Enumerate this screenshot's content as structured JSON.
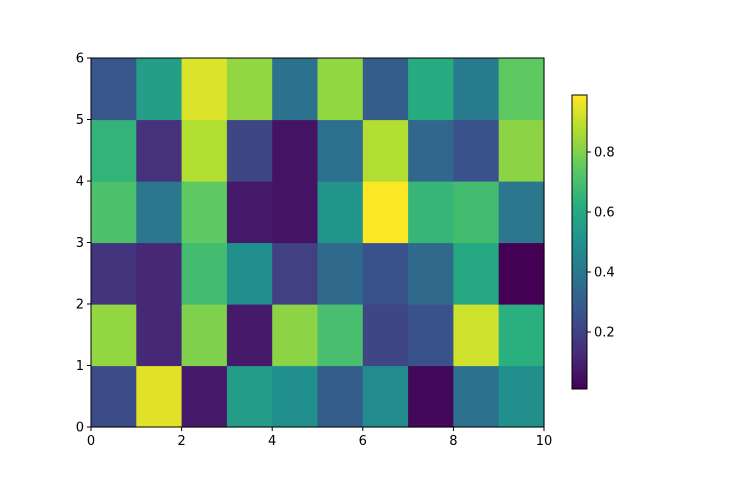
{
  "chart_data": {
    "type": "heatmap",
    "title": "",
    "xlabel": "",
    "ylabel": "",
    "xlim": [
      0,
      10
    ],
    "ylim": [
      0,
      6
    ],
    "x_ticks": [
      "0",
      "2",
      "4",
      "6",
      "8",
      "10"
    ],
    "y_ticks": [
      "0",
      "1",
      "2",
      "3",
      "4",
      "5",
      "6"
    ],
    "colormap": "viridis",
    "value_range": [
      0.01,
      0.99
    ],
    "colorbar_ticks": [
      "0.2",
      "0.4",
      "0.6",
      "0.8"
    ],
    "colorbar_tick_values": [
      0.2,
      0.4,
      0.6,
      0.8
    ],
    "rows_bottom_to_top": [
      [
        0.24,
        0.95,
        0.08,
        0.55,
        0.5,
        0.3,
        0.48,
        0.03,
        0.38,
        0.5
      ],
      [
        0.83,
        0.12,
        0.8,
        0.08,
        0.82,
        0.7,
        0.22,
        0.26,
        0.92,
        0.63
      ],
      [
        0.16,
        0.12,
        0.69,
        0.5,
        0.2,
        0.35,
        0.26,
        0.35,
        0.6,
        0.01
      ],
      [
        0.71,
        0.4,
        0.75,
        0.08,
        0.06,
        0.52,
        0.99,
        0.66,
        0.69,
        0.4
      ],
      [
        0.65,
        0.15,
        0.88,
        0.22,
        0.06,
        0.37,
        0.88,
        0.34,
        0.26,
        0.82
      ],
      [
        0.28,
        0.56,
        0.94,
        0.83,
        0.38,
        0.83,
        0.3,
        0.62,
        0.42,
        0.75
      ]
    ]
  }
}
